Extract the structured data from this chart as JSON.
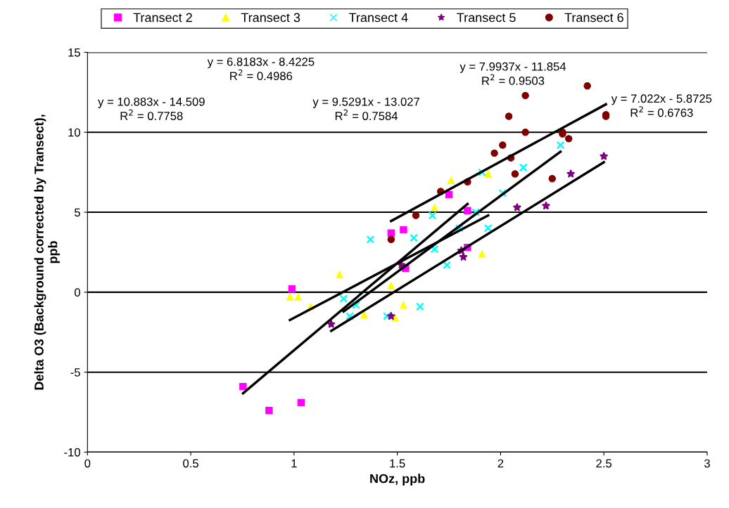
{
  "chart_data": {
    "type": "scatter",
    "xlabel": "NOz, ppb",
    "ylabel": "Delta O3 (Background corrected by Transect),\nppb",
    "xlim": [
      0,
      3
    ],
    "xticks": [
      0,
      0.5,
      1,
      1.5,
      2,
      2.5,
      3
    ],
    "ylim": [
      -10,
      15
    ],
    "yticks": [
      -10,
      -5,
      0,
      5,
      10,
      15
    ],
    "grid": "y",
    "legend": "top",
    "annotations": [
      "y = 10.883x - 14.509\nR$^{2}$ = 0.7758",
      "y = 6.8183x - 8.4225\nR$^{2}$ = 0.4986",
      "y = 9.5291x - 13.027\nR$^{2}$ = 0.7584",
      "y = 7.9937x - 11.854\nR$^{2}$ = 0.9503",
      "y = 7.022x - 5.8725\nR$^{2}$ = 0.6763"
    ],
    "series": [
      {
        "name": "Transect 2",
        "color": "#ff00ff",
        "marker": "square",
        "x": [
          0.753,
          0.879,
          1.034,
          0.99,
          1.47,
          1.53,
          1.54,
          1.75,
          1.84,
          1.84
        ],
        "values": [
          -5.9,
          -7.4,
          -6.9,
          0.2,
          3.7,
          3.9,
          1.5,
          6.1,
          5.1,
          2.8
        ]
      },
      {
        "name": "Transect 3",
        "color": "#ffff00",
        "marker": "triangle",
        "x": [
          0.98,
          1.02,
          1.08,
          1.22,
          1.34,
          1.47,
          1.49,
          1.53,
          1.68,
          1.76,
          1.91,
          1.94
        ],
        "values": [
          -0.3,
          -0.3,
          -0.9,
          1.1,
          -1.4,
          0.4,
          -1.6,
          -0.8,
          5.3,
          7.0,
          2.4,
          7.4
        ]
      },
      {
        "name": "Transect 4",
        "color": "#00ffff",
        "marker": "cross",
        "x": [
          1.24,
          1.3,
          1.27,
          1.45,
          1.61,
          1.37,
          1.58,
          1.67,
          1.68,
          1.74,
          1.94,
          1.88,
          1.8,
          2.01,
          1.91,
          2.11,
          2.29
        ],
        "values": [
          -0.4,
          -0.8,
          -1.5,
          -1.5,
          -0.9,
          3.3,
          3.4,
          4.8,
          2.7,
          1.7,
          4.0,
          5.0,
          4.0,
          6.2,
          7.5,
          7.8,
          9.2
        ]
      },
      {
        "name": "Transect 5",
        "color": "#800080",
        "marker": "star",
        "x": [
          1.18,
          1.47,
          1.52,
          1.81,
          1.82,
          2.08,
          2.22,
          2.34,
          2.5
        ],
        "values": [
          -2.0,
          -1.5,
          1.7,
          2.6,
          2.2,
          5.3,
          5.4,
          7.4,
          8.5
        ]
      },
      {
        "name": "Transect 6",
        "color": "#800000",
        "marker": "circle",
        "x": [
          1.47,
          1.59,
          1.71,
          1.84,
          1.97,
          2.01,
          2.05,
          2.07,
          2.04,
          2.12,
          2.12,
          2.25,
          2.3,
          2.3,
          2.33,
          2.42,
          2.51,
          2.51
        ],
        "values": [
          3.3,
          4.8,
          6.3,
          6.9,
          8.7,
          9.2,
          8.4,
          7.4,
          11.0,
          12.3,
          10.0,
          7.1,
          10.0,
          9.9,
          9.6,
          12.9,
          11.1,
          11.0
        ]
      },
      {
        "type": "line",
        "color": "#000000",
        "marker": "none",
        "x": [
          0.753,
          1.84
        ],
        "values": [
          -6.32,
          5.52
        ]
      },
      {
        "type": "line",
        "color": "#000000",
        "marker": "none",
        "x": [
          0.98,
          1.94
        ],
        "values": [
          -1.74,
          4.8
        ]
      },
      {
        "type": "line",
        "color": "#000000",
        "marker": "none",
        "x": [
          1.24,
          2.29
        ],
        "values": [
          -1.21,
          8.79
        ]
      },
      {
        "type": "line",
        "color": "#000000",
        "marker": "none",
        "x": [
          1.18,
          2.5
        ],
        "values": [
          -2.42,
          8.13
        ]
      },
      {
        "type": "line",
        "color": "#000000",
        "marker": "none",
        "x": [
          1.47,
          2.51
        ],
        "values": [
          4.45,
          11.75
        ]
      }
    ]
  }
}
